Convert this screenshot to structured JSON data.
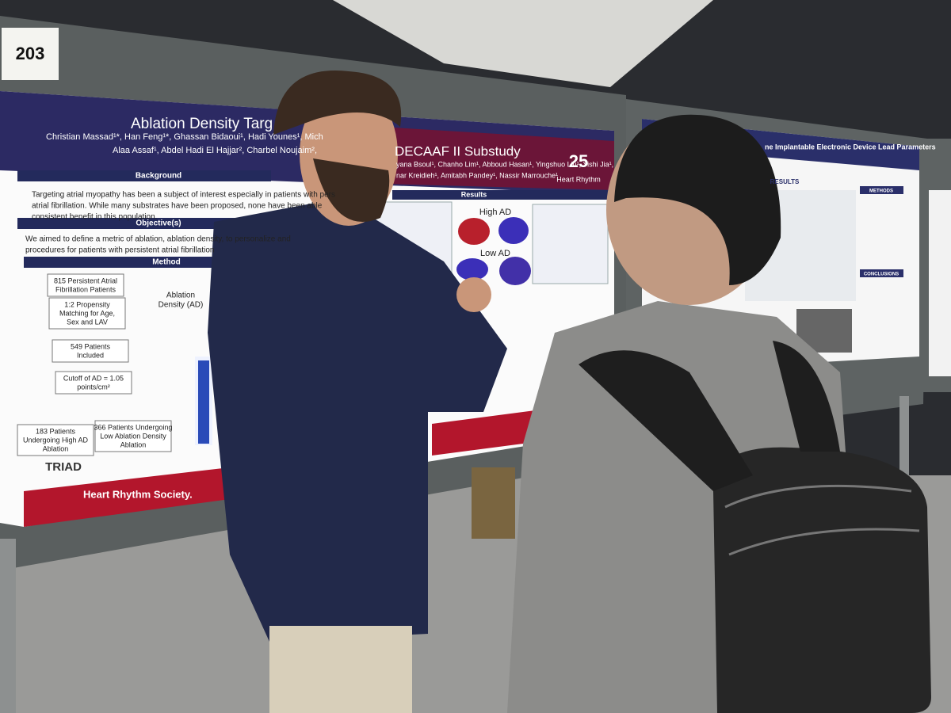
{
  "booth_number": "203",
  "left_poster": {
    "title": "Ablation Density Targ",
    "subtitle": "DECAAF II Substudy",
    "authors": [
      "Christian Massad¹*, Han Feng¹*, Ghassan Bidaoui¹, Hadi Younes¹, Mich",
      "Alaa Assaf¹, Abdel Hadi El Hajjar², Charbel Noujaim²,",
      "yana Bsoul¹, Chanho Lim¹, Abboud Hasan¹, Yingshuo Liu¹, Yishi Jia¹,",
      "nar Kreidieh¹, Amitabh Pandey¹, Nassir Marrouche¹"
    ],
    "logo": {
      "number": "25",
      "name": "Heart Rhythm"
    },
    "background": {
      "heading": "Background",
      "lines": [
        "Targeting atrial myopathy has been a subject of interest especially in patients with pers",
        "atrial fibrillation. While many substrates have been proposed, none have been able",
        "consistent benefit in this population."
      ]
    },
    "objectives": {
      "heading": "Objective(s)",
      "lines": [
        "We aimed to define a metric of ablation, ablation density, to personalize and",
        "procedures for patients with persistent atrial fibrillation"
      ]
    },
    "method": {
      "heading": "Method",
      "flow": [
        [
          "815 Persistent Atrial",
          "Fibrillation Patients"
        ],
        [
          "1:2 Propensity",
          "Matching for Age,",
          "Sex and LAV"
        ],
        [
          "549 Patients",
          "Included"
        ],
        [
          "Cutoff of AD = 1.05",
          "points/cm²"
        ],
        [
          "183 Patients",
          "Undergoing High AD",
          "Ablation"
        ],
        [
          "366 Patients Undergoing",
          "Low Ablation Density",
          "Ablation"
        ]
      ],
      "ablation_density": [
        "Ablation",
        "Density (AD)"
      ]
    },
    "results": {
      "heading": "Results",
      "labels": [
        "High AD",
        "Low AD"
      ]
    },
    "footer_logos": [
      "TRIAD",
      "Heart Rhythm Society."
    ]
  },
  "right_poster": {
    "title": "ne Implantable Electronic Device Lead Parameters",
    "headings": [
      "RESULTS",
      "METHODS",
      "CONCLUSIONS"
    ]
  }
}
